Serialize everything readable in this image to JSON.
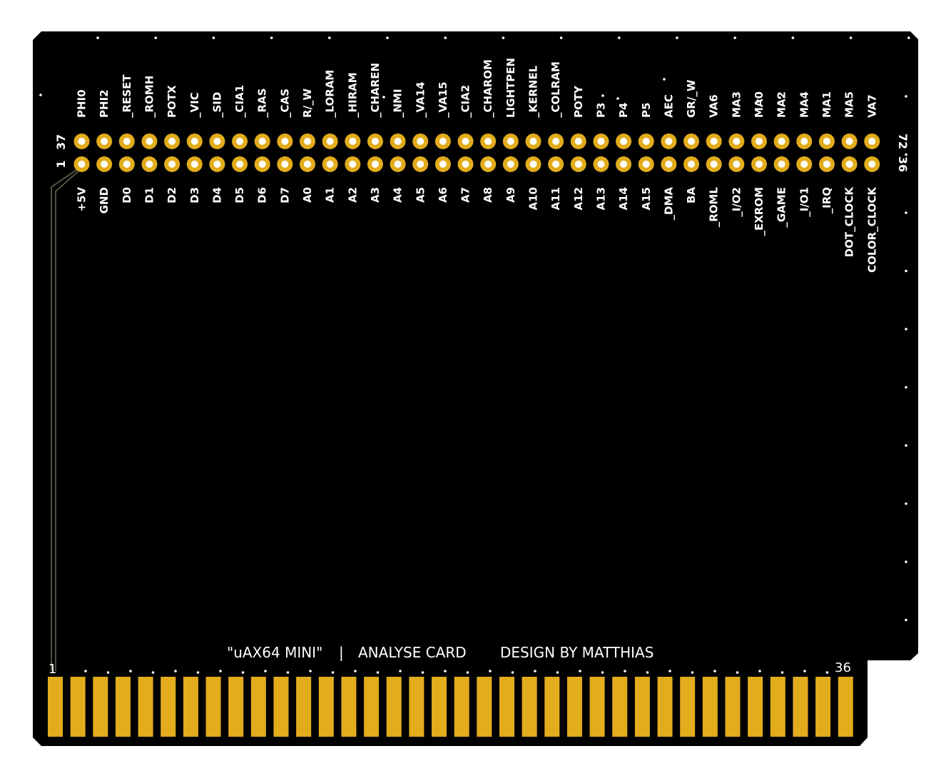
{
  "board": {
    "colors": {
      "board": "#000000",
      "pad_gold": "#e2ac1c",
      "pad_hole": "#ffffff",
      "silk": "#ffffff",
      "trace": "#6e6a50"
    },
    "title_left": "\"uAX64 MINI\"",
    "title_sep": "|",
    "title_mid": "ANALYSE CARD",
    "title_right": "DESIGN BY MATTHIAS",
    "header_num_left_top": "37",
    "header_num_left_bottom": "1",
    "header_num_right_top": "72",
    "header_num_right_bottom": "36",
    "edge_num_left": "1",
    "edge_num_right": "36",
    "top_labels": [
      "PHI0",
      "PHI2",
      "_RESET",
      "_ROMH",
      "POTX",
      "_VIC",
      "_SID",
      "_CIA1",
      "_RAS",
      "_CAS",
      "R/_W",
      "_LORAM",
      "_HIRAM",
      "_CHAREN",
      "_NMI",
      "_VA14",
      "_VA15",
      "_CIA2",
      "_CHAROM",
      "LIGHTPEN",
      "_KERNEL",
      "_COLRAM",
      "POTY",
      "P3",
      "P4",
      "P5",
      "AEC",
      "GR/_W",
      "VA6",
      "MA3",
      "MA0",
      "MA2",
      "MA4",
      "MA1",
      "MA5",
      "VA7"
    ],
    "bottom_labels": [
      "+5V",
      "GND",
      "D0",
      "D1",
      "D2",
      "D3",
      "D4",
      "D5",
      "D6",
      "D7",
      "A0",
      "A1",
      "A2",
      "A3",
      "A4",
      "A5",
      "A6",
      "A7",
      "A8",
      "A9",
      "A10",
      "A11",
      "A12",
      "A13",
      "A14",
      "A15",
      "_DMA",
      "BA",
      "_ROML",
      "_I/O2",
      "_EXROM",
      "_GAME",
      "_I/O1",
      "_IRQ",
      "DOT_CLOCK",
      "COLOR_CLOCK"
    ],
    "edge_finger_count": 36
  }
}
